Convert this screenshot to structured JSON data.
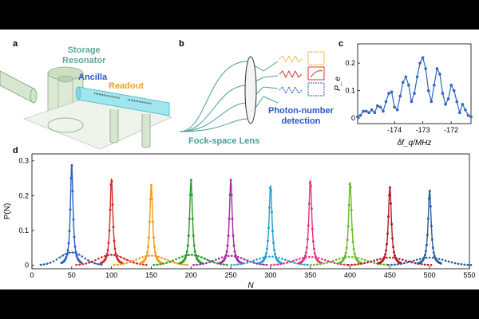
{
  "panel_a": {
    "letter": "a",
    "storage_label": "Storage\nResonator",
    "ancilla_label": "Ancilla",
    "readout_label": "Readout",
    "colors": {
      "storage": "#5fa89a",
      "ancilla": "#2b55c9",
      "readout": "#f0a020"
    }
  },
  "panel_b": {
    "letter": "b",
    "lens_label": "Fock-space Lens",
    "detection_label": "Photon-number\ndetection",
    "colors": {
      "lens_text": "#4aa096",
      "detection_text": "#2b55c9"
    }
  },
  "chart_data": [
    {
      "id": "c",
      "type": "line",
      "title": "",
      "xlabel": "δf_q/MHz",
      "ylabel": "P_e",
      "xlim": [
        -175.3,
        -171.3
      ],
      "ylim": [
        -0.02,
        0.27
      ],
      "xticks": [
        -174,
        -173,
        -172
      ],
      "xtick_labels": [
        "-174",
        "-173",
        "-172"
      ],
      "yticks": [
        0,
        0.1,
        0.2
      ],
      "ytick_labels": [
        "0",
        "0.1",
        "0.2"
      ],
      "color": "#2f64c0",
      "x": [
        -175.3,
        -175.2,
        -175.1,
        -175.0,
        -174.9,
        -174.8,
        -174.7,
        -174.6,
        -174.5,
        -174.4,
        -174.3,
        -174.2,
        -174.1,
        -174.0,
        -173.9,
        -173.8,
        -173.7,
        -173.6,
        -173.5,
        -173.4,
        -173.3,
        -173.2,
        -173.1,
        -173.0,
        -172.9,
        -172.8,
        -172.7,
        -172.6,
        -172.5,
        -172.4,
        -172.3,
        -172.2,
        -172.1,
        -172.0,
        -171.9,
        -171.8,
        -171.7,
        -171.6,
        -171.5,
        -171.4,
        -171.3
      ],
      "y": [
        0.005,
        0.01,
        0.025,
        0.025,
        0.02,
        0.03,
        0.02,
        0.045,
        0.04,
        0.025,
        0.06,
        0.09,
        0.095,
        0.04,
        0.03,
        0.08,
        0.13,
        0.15,
        0.12,
        0.06,
        0.09,
        0.15,
        0.2,
        0.22,
        0.18,
        0.1,
        0.06,
        0.12,
        0.18,
        0.16,
        0.09,
        0.05,
        0.07,
        0.12,
        0.1,
        0.06,
        0.02,
        0.05,
        0.03,
        0.01,
        0.005
      ]
    },
    {
      "id": "d",
      "type": "line",
      "title": "",
      "xlabel": "N",
      "ylabel": "P(N)",
      "xlim": [
        0,
        550
      ],
      "ylim": [
        -0.01,
        0.32
      ],
      "xticks": [
        0,
        50,
        100,
        150,
        200,
        250,
        300,
        350,
        400,
        450,
        500,
        550
      ],
      "xtick_labels": [
        "0",
        "50",
        "100",
        "150",
        "200",
        "250",
        "300",
        "350",
        "400",
        "450",
        "500",
        "550"
      ],
      "yticks": [
        0,
        0.1,
        0.2,
        0.3
      ],
      "ytick_labels": [
        "0",
        "0.1",
        "0.2",
        "0.3"
      ],
      "series": [
        {
          "name": "N=50",
          "center": 50,
          "peak": 0.29,
          "width": 3.2,
          "broad_peak": 0.037,
          "broad_width": 15,
          "color": "#2c5fc0"
        },
        {
          "name": "N=100",
          "center": 100,
          "peak": 0.25,
          "width": 3.4,
          "broad_peak": 0.03,
          "broad_width": 17,
          "color": "#d62a2a"
        },
        {
          "name": "N=150",
          "center": 150,
          "peak": 0.23,
          "width": 3.5,
          "broad_peak": 0.028,
          "broad_width": 18,
          "color": "#f39a1b"
        },
        {
          "name": "N=200",
          "center": 200,
          "peak": 0.245,
          "width": 3.5,
          "broad_peak": 0.03,
          "broad_width": 18,
          "color": "#2a9a2a"
        },
        {
          "name": "N=250",
          "center": 250,
          "peak": 0.245,
          "width": 3.5,
          "broad_peak": 0.027,
          "broad_width": 18,
          "color": "#a52aa5"
        },
        {
          "name": "N=300",
          "center": 300,
          "peak": 0.23,
          "width": 3.6,
          "broad_peak": 0.025,
          "broad_width": 19,
          "color": "#22a0cc"
        },
        {
          "name": "N=350",
          "center": 350,
          "peak": 0.245,
          "width": 3.6,
          "broad_peak": 0.024,
          "broad_width": 19,
          "color": "#e0357f"
        },
        {
          "name": "N=400",
          "center": 400,
          "peak": 0.24,
          "width": 3.6,
          "broad_peak": 0.024,
          "broad_width": 19,
          "color": "#6ab82a"
        },
        {
          "name": "N=450",
          "center": 450,
          "peak": 0.225,
          "width": 3.7,
          "broad_peak": 0.022,
          "broad_width": 20,
          "color": "#b01e24"
        },
        {
          "name": "N=500",
          "center": 500,
          "peak": 0.215,
          "width": 3.7,
          "broad_peak": 0.022,
          "broad_width": 20,
          "color": "#2a5e9c"
        }
      ]
    }
  ]
}
